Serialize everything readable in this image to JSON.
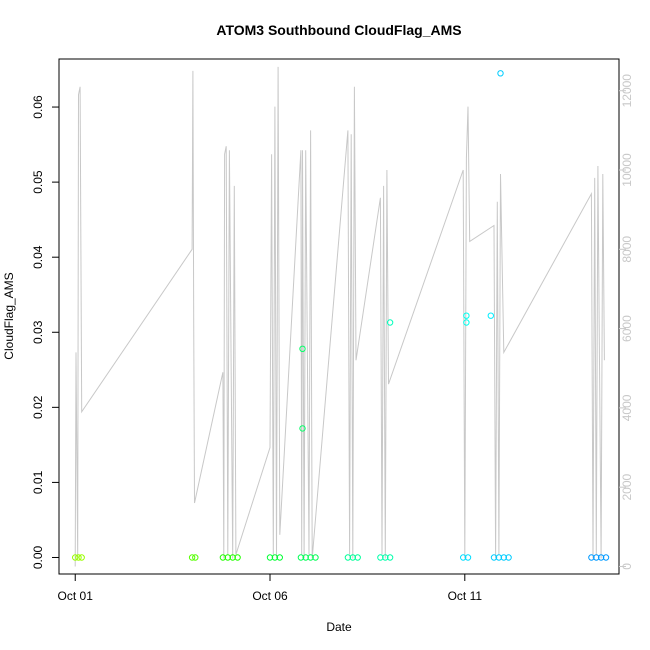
{
  "chart_data": {
    "type": "scatter",
    "title": "ATOM3 Southbound CloudFlag_AMS",
    "xlabel": "Date",
    "ylabel": "CloudFlag_AMS",
    "x_unit": "date",
    "xlim": [
      "2016-09-30T14:00",
      "2016-10-14T23:00"
    ],
    "ylim": [
      -0.0022,
      0.0664
    ],
    "y2lim": [
      -190,
      12800
    ],
    "x_ticks": [
      {
        "label": "Oct 01",
        "value": "2016-10-01"
      },
      {
        "label": "Oct 06",
        "value": "2016-10-06"
      },
      {
        "label": "Oct 11",
        "value": "2016-10-11"
      }
    ],
    "y_ticks": [
      {
        "label": "0.00",
        "value": 0.0
      },
      {
        "label": "0.01",
        "value": 0.01
      },
      {
        "label": "0.02",
        "value": 0.02
      },
      {
        "label": "0.03",
        "value": 0.03
      },
      {
        "label": "0.04",
        "value": 0.04
      },
      {
        "label": "0.05",
        "value": 0.05
      },
      {
        "label": "0.06",
        "value": 0.06
      }
    ],
    "y2_ticks": [
      {
        "label": "0",
        "value": 0
      },
      {
        "label": "2000",
        "value": 2000
      },
      {
        "label": "4000",
        "value": 4000
      },
      {
        "label": "6000",
        "value": 6000
      },
      {
        "label": "8000",
        "value": 8000
      },
      {
        "label": "10000",
        "value": 10000
      },
      {
        "label": "12000",
        "value": 12000
      }
    ],
    "secondary_series_color": "#c8c8c8",
    "grid": false,
    "legend": "none",
    "points": [
      {
        "x": "2016-10-01T00:00",
        "y": 0,
        "color": "#99ff00"
      },
      {
        "x": "2016-10-01T02:00",
        "y": 0,
        "color": "#99ff00"
      },
      {
        "x": "2016-10-01T04:00",
        "y": 0,
        "color": "#99ff00"
      },
      {
        "x": "2016-10-04T00:00",
        "y": 0,
        "color": "#55ff00"
      },
      {
        "x": "2016-10-04T02:00",
        "y": 0,
        "color": "#55ff00"
      },
      {
        "x": "2016-10-04T19:00",
        "y": 0,
        "color": "#22ff00"
      },
      {
        "x": "2016-10-04T22:00",
        "y": 0,
        "color": "#22ff00"
      },
      {
        "x": "2016-10-05T01:00",
        "y": 0,
        "color": "#22ff00"
      },
      {
        "x": "2016-10-05T04:00",
        "y": 0,
        "color": "#22ff00"
      },
      {
        "x": "2016-10-06T00:00",
        "y": 0,
        "color": "#00ff33"
      },
      {
        "x": "2016-10-06T03:00",
        "y": 0,
        "color": "#00ff33"
      },
      {
        "x": "2016-10-06T06:00",
        "y": 0,
        "color": "#00ff33"
      },
      {
        "x": "2016-10-06T19:00",
        "y": 0,
        "color": "#00ff55"
      },
      {
        "x": "2016-10-06T22:00",
        "y": 0,
        "color": "#00ff55"
      },
      {
        "x": "2016-10-07T01:00",
        "y": 0,
        "color": "#00ff55"
      },
      {
        "x": "2016-10-07T04:00",
        "y": 0,
        "color": "#00ff55"
      },
      {
        "x": "2016-10-06T20:00",
        "y": 0.0278,
        "color": "#00ff66"
      },
      {
        "x": "2016-10-06T20:00",
        "y": 0.0172,
        "color": "#00ff66"
      },
      {
        "x": "2016-10-08T00:00",
        "y": 0,
        "color": "#00ff99"
      },
      {
        "x": "2016-10-08T03:00",
        "y": 0,
        "color": "#00ff99"
      },
      {
        "x": "2016-10-08T06:00",
        "y": 0,
        "color": "#00ff99"
      },
      {
        "x": "2016-10-08T20:00",
        "y": 0,
        "color": "#00ffaa"
      },
      {
        "x": "2016-10-08T23:00",
        "y": 0,
        "color": "#00ffaa"
      },
      {
        "x": "2016-10-09T02:00",
        "y": 0,
        "color": "#00ffaa"
      },
      {
        "x": "2016-10-09T02:00",
        "y": 0.0313,
        "color": "#00ffbb"
      },
      {
        "x": "2016-10-10T23:00",
        "y": 0,
        "color": "#00ddff"
      },
      {
        "x": "2016-10-11T02:00",
        "y": 0,
        "color": "#00ddff"
      },
      {
        "x": "2016-10-11T01:00",
        "y": 0.0322,
        "color": "#00ffee"
      },
      {
        "x": "2016-10-11T01:00",
        "y": 0.0313,
        "color": "#00ffee"
      },
      {
        "x": "2016-10-11T16:00",
        "y": 0.0322,
        "color": "#00eeff"
      },
      {
        "x": "2016-10-11T18:00",
        "y": 0,
        "color": "#00ccff"
      },
      {
        "x": "2016-10-11T21:00",
        "y": 0,
        "color": "#00ccff"
      },
      {
        "x": "2016-10-12T00:00",
        "y": 0,
        "color": "#00ccff"
      },
      {
        "x": "2016-10-12T03:00",
        "y": 0,
        "color": "#00ccff"
      },
      {
        "x": "2016-10-11T22:00",
        "y": 0.0645,
        "color": "#00ccff"
      },
      {
        "x": "2016-10-14T06:00",
        "y": 0,
        "color": "#0099ff"
      },
      {
        "x": "2016-10-14T09:00",
        "y": 0,
        "color": "#0099ff"
      },
      {
        "x": "2016-10-14T12:00",
        "y": 0,
        "color": "#0099ff"
      },
      {
        "x": "2016-10-14T15:00",
        "y": 0,
        "color": "#0099ff"
      }
    ],
    "secondary_series": [
      [
        "2016-10-01T00:00",
        0
      ],
      [
        "2016-10-01T00:30",
        5400
      ],
      [
        "2016-10-01T01:30",
        200
      ],
      [
        "2016-10-01T02:00",
        11900
      ],
      [
        "2016-10-01T03:00",
        12100
      ],
      [
        "2016-10-01T04:00",
        3900
      ],
      [
        "2016-10-04T00:00",
        8000
      ],
      [
        "2016-10-04T00:30",
        12500
      ],
      [
        "2016-10-04T01:00",
        6200
      ],
      [
        "2016-10-04T01:30",
        1600
      ],
      [
        "2016-10-04T19:00",
        4900
      ],
      [
        "2016-10-04T19:30",
        200
      ],
      [
        "2016-10-04T20:00",
        10400
      ],
      [
        "2016-10-04T21:00",
        10600
      ],
      [
        "2016-10-04T22:00",
        300
      ],
      [
        "2016-10-04T23:00",
        10500
      ],
      [
        "2016-10-05T01:00",
        200
      ],
      [
        "2016-10-05T02:00",
        9600
      ],
      [
        "2016-10-05T03:00",
        300
      ],
      [
        "2016-10-06T00:00",
        3000
      ],
      [
        "2016-10-06T01:00",
        10400
      ],
      [
        "2016-10-06T02:00",
        300
      ],
      [
        "2016-10-06T03:00",
        11600
      ],
      [
        "2016-10-06T04:00",
        200
      ],
      [
        "2016-10-06T05:00",
        12600
      ],
      [
        "2016-10-06T06:00",
        800
      ],
      [
        "2016-10-06T19:00",
        10500
      ],
      [
        "2016-10-06T19:30",
        300
      ],
      [
        "2016-10-06T20:00",
        10500
      ],
      [
        "2016-10-06T21:00",
        200
      ],
      [
        "2016-10-06T22:00",
        10500
      ],
      [
        "2016-10-07T00:00",
        300
      ],
      [
        "2016-10-07T01:00",
        11000
      ],
      [
        "2016-10-07T02:00",
        200
      ],
      [
        "2016-10-08T00:00",
        11000
      ],
      [
        "2016-10-08T01:00",
        300
      ],
      [
        "2016-10-08T02:00",
        10900
      ],
      [
        "2016-10-08T03:00",
        200
      ],
      [
        "2016-10-08T04:00",
        12100
      ],
      [
        "2016-10-08T05:00",
        5200
      ],
      [
        "2016-10-08T20:00",
        9300
      ],
      [
        "2016-10-08T21:00",
        300
      ],
      [
        "2016-10-08T22:00",
        9600
      ],
      [
        "2016-10-08T23:00",
        200
      ],
      [
        "2016-10-09T00:00",
        10000
      ],
      [
        "2016-10-09T01:00",
        4600
      ],
      [
        "2016-10-10T23:00",
        10000
      ],
      [
        "2016-10-11T00:00",
        200
      ],
      [
        "2016-10-11T01:00",
        10300
      ],
      [
        "2016-10-11T02:00",
        11600
      ],
      [
        "2016-10-11T03:00",
        8200
      ],
      [
        "2016-10-11T18:00",
        8600
      ],
      [
        "2016-10-11T19:00",
        200
      ],
      [
        "2016-10-11T20:00",
        9200
      ],
      [
        "2016-10-11T21:00",
        300
      ],
      [
        "2016-10-11T22:00",
        9900
      ],
      [
        "2016-10-12T00:00",
        5400
      ],
      [
        "2016-10-14T06:00",
        9400
      ],
      [
        "2016-10-14T07:00",
        200
      ],
      [
        "2016-10-14T08:00",
        9800
      ],
      [
        "2016-10-14T09:00",
        300
      ],
      [
        "2016-10-14T10:00",
        10100
      ],
      [
        "2016-10-14T12:00",
        200
      ],
      [
        "2016-10-14T13:00",
        9900
      ],
      [
        "2016-10-14T14:00",
        5200
      ]
    ]
  }
}
